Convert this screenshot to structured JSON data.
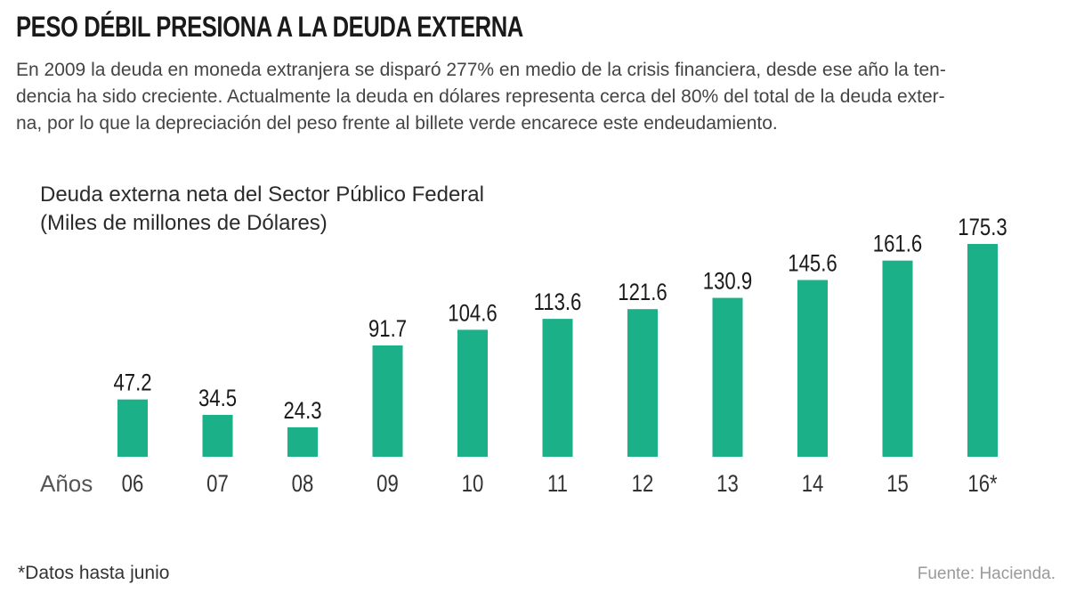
{
  "header": {
    "title": "PESO DÉBIL PRESIONA A LA DEUDA EXTERNA",
    "intro_lines": [
      "En 2009 la deuda en moneda extranjera se disparó 277% en medio de la crisis financiera, desde ese año la ten-",
      "dencia ha sido creciente. Actualmente la deuda en dólares representa cerca del 80% del total de la deuda exter-",
      "na, por lo que la depreciación del peso frente al billete verde encarece este endeudamiento."
    ]
  },
  "colors": {
    "bar": "#1bb088",
    "text": "#333333",
    "muted": "#9a9a9a"
  },
  "chart_data": {
    "type": "bar",
    "title": "Deuda externa neta del Sector Público Federal",
    "subtitle": "(Miles de millones de Dólares)",
    "xlabel": "Años",
    "ylabel": "",
    "categories": [
      "06",
      "07",
      "08",
      "09",
      "10",
      "11",
      "12",
      "13",
      "14",
      "15",
      "16*"
    ],
    "values": [
      47.2,
      34.5,
      24.3,
      91.7,
      104.6,
      113.6,
      121.6,
      130.9,
      145.6,
      161.6,
      175.3
    ],
    "value_labels": [
      "47.2",
      "34.5",
      "24.3",
      "91.7",
      "104.6",
      "113.6",
      "121.6",
      "130.9",
      "145.6",
      "161.6",
      "175.3"
    ],
    "ylim": [
      0,
      175.3
    ]
  },
  "footer": {
    "note": "*Datos hasta junio",
    "source": "Fuente: Hacienda."
  }
}
